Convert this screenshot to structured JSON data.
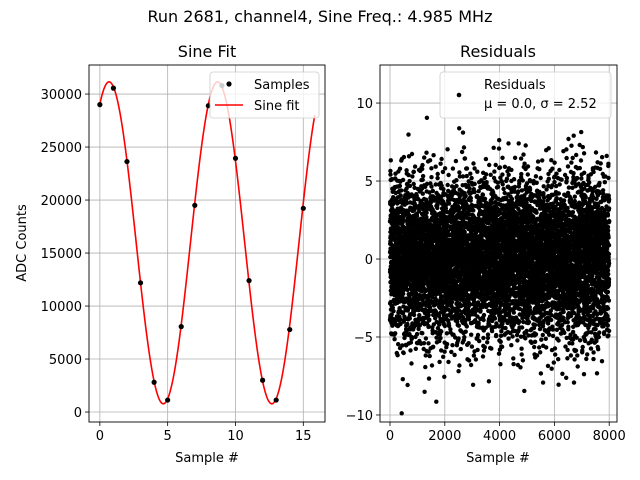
{
  "suptitle": "Run 2681, channel4, Sine Freq.: 4.985 MHz",
  "chart_data": [
    {
      "type": "line",
      "title": "Sine Fit",
      "xlabel": "Sample #",
      "ylabel": "ADC Counts",
      "xlim": [
        -0.8,
        16.6
      ],
      "ylim": [
        -940,
        32740
      ],
      "xticks": [
        0,
        5,
        10,
        15
      ],
      "xtick_labels": [
        "0",
        "5",
        "10",
        "15"
      ],
      "yticks": [
        0,
        5000,
        10000,
        15000,
        20000,
        25000,
        30000
      ],
      "ytick_labels": [
        "0",
        "5000",
        "10000",
        "15000",
        "20000",
        "25000",
        "30000"
      ],
      "grid": true,
      "legend": {
        "placement": "upper-right",
        "entries": [
          "Samples",
          "Sine fit"
        ]
      },
      "samples": {
        "name": "Samples",
        "color": "#000000",
        "x": [
          0,
          1,
          2,
          3,
          4,
          5,
          6,
          7,
          8,
          9,
          10,
          11,
          12,
          13,
          14,
          15
        ],
        "y": [
          29000,
          30560,
          23630,
          12190,
          2810,
          1130,
          8060,
          19500,
          28900,
          30800,
          23940,
          12400,
          3000,
          1130,
          7780,
          19220
        ]
      },
      "fit": {
        "name": "Sine fit",
        "color": "#ff0000",
        "offset": 15965,
        "amplitude": 15185,
        "period": 8.0,
        "phase_x": 0.68,
        "x_range": [
          0,
          15.85
        ]
      }
    },
    {
      "type": "scatter",
      "title": "Residuals",
      "xlabel": "Sample #",
      "xlim": [
        -365,
        8285
      ],
      "ylim": [
        -10.45,
        12.44
      ],
      "xticks": [
        0,
        2000,
        4000,
        6000,
        8000
      ],
      "xtick_labels": [
        "0",
        "2000",
        "4000",
        "6000",
        "8000"
      ],
      "yticks": [
        -10,
        -5,
        0,
        5,
        10
      ],
      "ytick_labels": [
        "−10",
        "−5",
        "0",
        "5",
        "10"
      ],
      "grid": true,
      "legend": {
        "placement": "upper-right",
        "entries": [
          "Residuals",
          "μ = 0.0, σ = 2.52"
        ]
      },
      "residuals": {
        "n": 8000,
        "mean": 0.0,
        "sigma": 2.52,
        "color": "#000000"
      }
    }
  ]
}
